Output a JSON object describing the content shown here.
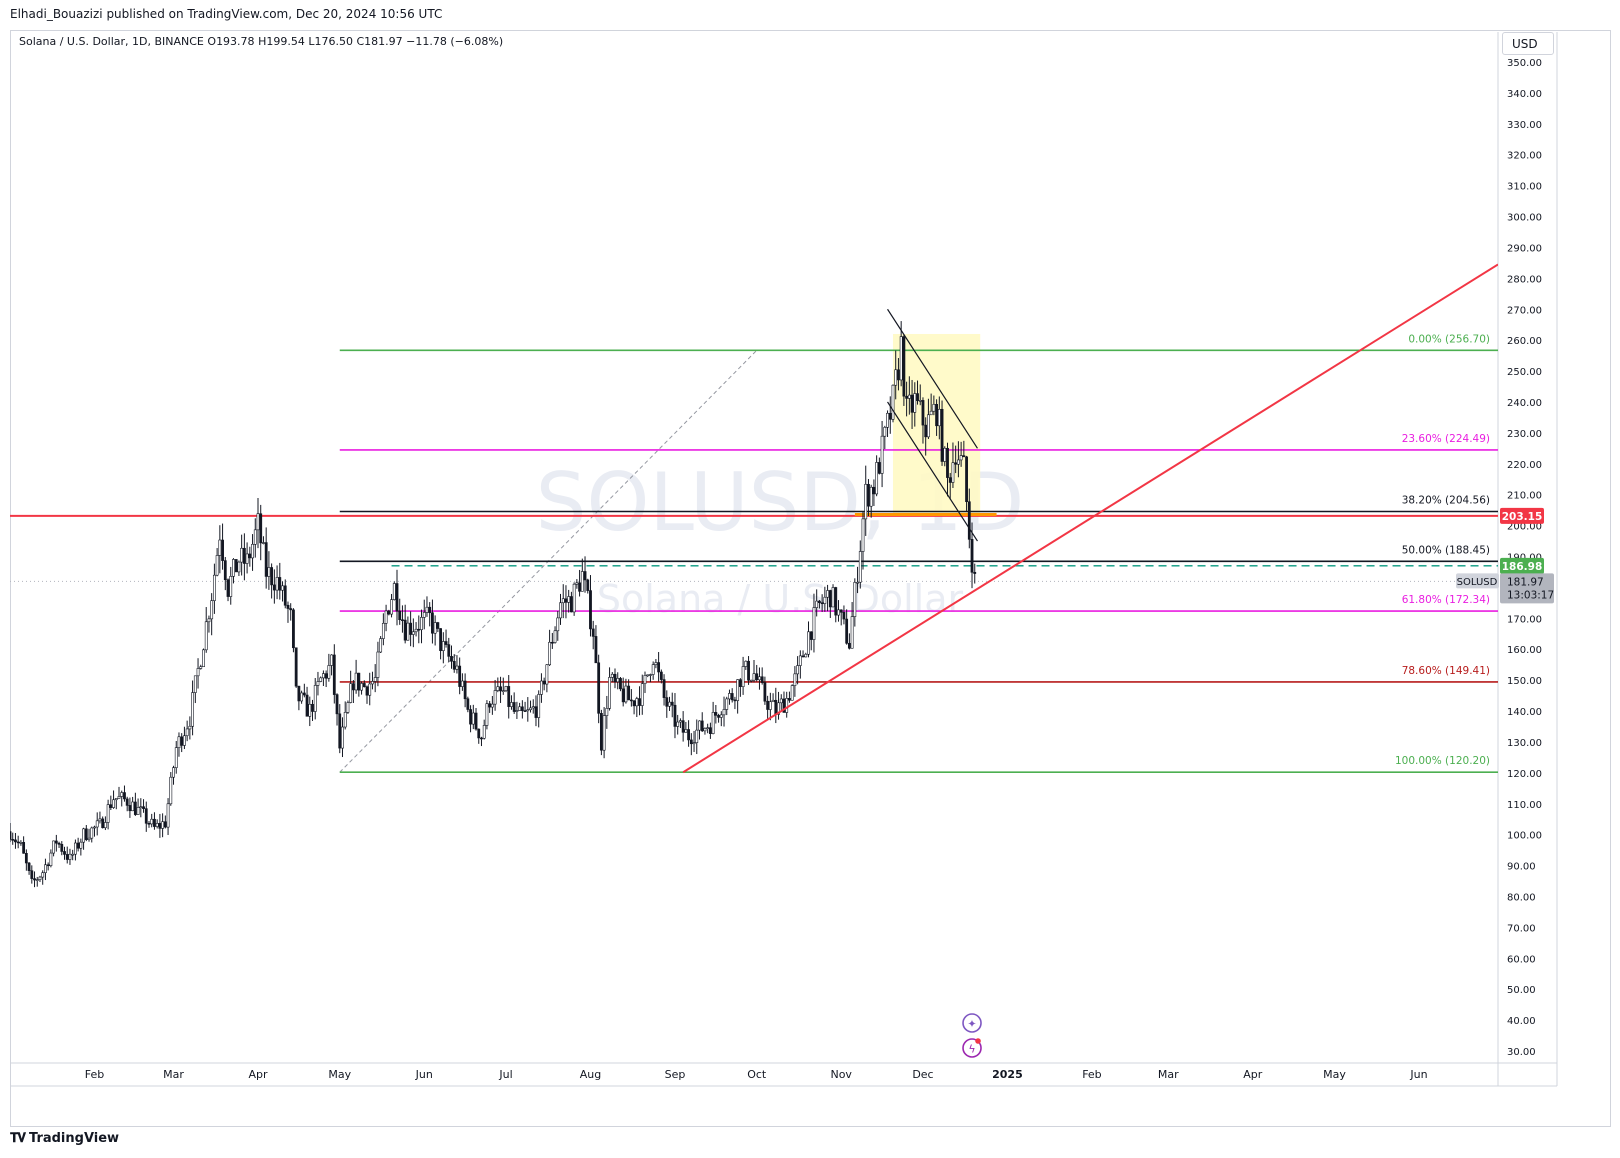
{
  "header": {
    "published_by": "Elhadi_Bouazizi published on TradingView.com, Dec 20, 2024 10:56 UTC"
  },
  "symbol_info": {
    "name": "Solana / U.S. Dollar, 1D, BINANCE",
    "o_label": "O",
    "o_value": "193.78",
    "h_label": "H",
    "h_value": "199.54",
    "l_label": "L",
    "l_value": "176.50",
    "c_label": "C",
    "c_value": "181.97",
    "change": "−11.78 (−6.08%)"
  },
  "currency": "USD",
  "watermark": {
    "symbol": "SOLUSD, 1D",
    "description": "Solana / U.S. Dollar"
  },
  "footer": {
    "brand": "TradingView"
  },
  "chart_data": {
    "type": "candlestick",
    "title": "Solana / U.S. Dollar, 1D, BINANCE",
    "ylim": [
      25,
      357
    ],
    "y_ticks": [
      30,
      40,
      50,
      60,
      70,
      80,
      90,
      100,
      110,
      120,
      130,
      140,
      150,
      160,
      170,
      180,
      190,
      200,
      210,
      220,
      230,
      240,
      250,
      260,
      270,
      280,
      290,
      300,
      310,
      320,
      330,
      340,
      350
    ],
    "xlim": [
      "2024-01-01",
      "2025-06-30"
    ],
    "x_ticks": [
      {
        "date": "2024-02-01",
        "label": "Feb"
      },
      {
        "date": "2024-03-01",
        "label": "Mar"
      },
      {
        "date": "2024-04-01",
        "label": "Apr"
      },
      {
        "date": "2024-05-01",
        "label": "May"
      },
      {
        "date": "2024-06-01",
        "label": "Jun"
      },
      {
        "date": "2024-07-01",
        "label": "Jul"
      },
      {
        "date": "2024-08-01",
        "label": "Aug"
      },
      {
        "date": "2024-09-01",
        "label": "Sep"
      },
      {
        "date": "2024-10-01",
        "label": "Oct"
      },
      {
        "date": "2024-11-01",
        "label": "Nov"
      },
      {
        "date": "2024-12-01",
        "label": "Dec"
      },
      {
        "date": "2025-01-01",
        "label": "2025",
        "bold": true
      },
      {
        "date": "2025-02-01",
        "label": "Feb"
      },
      {
        "date": "2025-03-01",
        "label": "Mar"
      },
      {
        "date": "2025-04-01",
        "label": "Apr"
      },
      {
        "date": "2025-05-01",
        "label": "May"
      },
      {
        "date": "2025-06-01",
        "label": "Jun"
      }
    ],
    "price_path": [
      [
        "2024-01-01",
        101
      ],
      [
        "2024-01-05",
        96
      ],
      [
        "2024-01-09",
        84
      ],
      [
        "2024-01-13",
        88
      ],
      [
        "2024-01-18",
        98
      ],
      [
        "2024-01-23",
        92
      ],
      [
        "2024-01-28",
        100
      ],
      [
        "2024-02-03",
        103
      ],
      [
        "2024-02-08",
        112
      ],
      [
        "2024-02-13",
        111
      ],
      [
        "2024-02-18",
        107
      ],
      [
        "2024-02-23",
        102
      ],
      [
        "2024-02-27",
        104
      ],
      [
        "2024-03-02",
        128
      ],
      [
        "2024-03-07",
        138
      ],
      [
        "2024-03-11",
        158
      ],
      [
        "2024-03-15",
        178
      ],
      [
        "2024-03-18",
        198
      ],
      [
        "2024-03-21",
        180
      ],
      [
        "2024-03-25",
        189
      ],
      [
        "2024-03-28",
        188
      ],
      [
        "2024-04-01",
        200
      ],
      [
        "2024-04-04",
        185
      ],
      [
        "2024-04-08",
        182
      ],
      [
        "2024-04-13",
        170
      ],
      [
        "2024-04-15",
        145
      ],
      [
        "2024-04-20",
        140
      ],
      [
        "2024-04-24",
        150
      ],
      [
        "2024-04-28",
        155
      ],
      [
        "2024-05-01",
        128
      ],
      [
        "2024-05-06",
        150
      ],
      [
        "2024-05-10",
        148
      ],
      [
        "2024-05-14",
        150
      ],
      [
        "2024-05-18",
        172
      ],
      [
        "2024-05-21",
        180
      ],
      [
        "2024-05-25",
        167
      ],
      [
        "2024-05-29",
        168
      ],
      [
        "2024-06-03",
        170
      ],
      [
        "2024-06-08",
        160
      ],
      [
        "2024-06-13",
        153
      ],
      [
        "2024-06-17",
        140
      ],
      [
        "2024-06-22",
        132
      ],
      [
        "2024-06-25",
        144
      ],
      [
        "2024-06-30",
        146
      ],
      [
        "2024-07-05",
        138
      ],
      [
        "2024-07-09",
        139
      ],
      [
        "2024-07-13",
        142
      ],
      [
        "2024-07-17",
        160
      ],
      [
        "2024-07-21",
        175
      ],
      [
        "2024-07-25",
        176
      ],
      [
        "2024-07-29",
        184
      ],
      [
        "2024-08-02",
        166
      ],
      [
        "2024-08-05",
        130
      ],
      [
        "2024-08-08",
        150
      ],
      [
        "2024-08-12",
        146
      ],
      [
        "2024-08-16",
        143
      ],
      [
        "2024-08-20",
        146
      ],
      [
        "2024-08-24",
        158
      ],
      [
        "2024-08-28",
        144
      ],
      [
        "2024-09-02",
        135
      ],
      [
        "2024-09-06",
        132
      ],
      [
        "2024-09-10",
        134
      ],
      [
        "2024-09-14",
        136
      ],
      [
        "2024-09-18",
        142
      ],
      [
        "2024-09-22",
        145
      ],
      [
        "2024-09-26",
        153
      ],
      [
        "2024-09-30",
        152
      ],
      [
        "2024-10-04",
        144
      ],
      [
        "2024-10-08",
        140
      ],
      [
        "2024-10-12",
        144
      ],
      [
        "2024-10-16",
        152
      ],
      [
        "2024-10-20",
        165
      ],
      [
        "2024-10-24",
        174
      ],
      [
        "2024-10-28",
        178
      ],
      [
        "2024-11-01",
        169
      ],
      [
        "2024-11-04",
        162
      ],
      [
        "2024-11-07",
        186
      ],
      [
        "2024-11-10",
        210
      ],
      [
        "2024-11-13",
        213
      ],
      [
        "2024-11-17",
        228
      ],
      [
        "2024-11-20",
        240
      ],
      [
        "2024-11-23",
        258
      ],
      [
        "2024-11-25",
        236
      ],
      [
        "2024-11-28",
        240
      ],
      [
        "2024-12-02",
        232
      ],
      [
        "2024-12-06",
        238
      ],
      [
        "2024-12-10",
        214
      ],
      [
        "2024-12-13",
        225
      ],
      [
        "2024-12-16",
        218
      ],
      [
        "2024-12-18",
        197
      ],
      [
        "2024-12-20",
        182
      ]
    ],
    "fibonacci": [
      {
        "ratio_label": "0.00%",
        "price": 256.7,
        "price_label": "256.70",
        "color": "#4caf50"
      },
      {
        "ratio_label": "23.60%",
        "price": 224.49,
        "price_label": "224.49",
        "color": "#e91ee0"
      },
      {
        "ratio_label": "38.20%",
        "price": 204.56,
        "price_label": "204.56",
        "color": "#131722"
      },
      {
        "ratio_label": "50.00%",
        "price": 188.45,
        "price_label": "188.45",
        "color": "#131722"
      },
      {
        "ratio_label": "61.80%",
        "price": 172.34,
        "price_label": "172.34",
        "color": "#e91ee0"
      },
      {
        "ratio_label": "78.60%",
        "price": 149.41,
        "price_label": "149.41",
        "color": "#b71c1c"
      },
      {
        "ratio_label": "100.00%",
        "price": 120.2,
        "price_label": "120.20",
        "color": "#4caf50"
      }
    ],
    "fib_start_date": "2024-05-01",
    "fib_diagonal": {
      "from": [
        "2024-05-01",
        120.2
      ],
      "to": [
        "2024-10-01",
        256.7
      ]
    },
    "horizontal_resistance": {
      "price": 203.15,
      "label": "203.15",
      "color": "#f23645"
    },
    "dashed_level": {
      "price": 186.98,
      "label": "186.98",
      "color": "#089981",
      "from_date": "2024-05-20"
    },
    "orange_level": {
      "price": 203.6,
      "from": "2024-11-06",
      "to": "2024-12-28",
      "color": "#ff9800"
    },
    "rising_trendline": {
      "from": [
        "2024-09-04",
        120.2
      ],
      "to": [
        "2025-06-30",
        284.5
      ],
      "color": "#f23645"
    },
    "falling_channel": {
      "upper": {
        "from": [
          "2024-11-18",
          270
        ],
        "to": [
          "2024-12-21",
          225
        ]
      },
      "lower": {
        "from": [
          "2024-11-18",
          240
        ],
        "to": [
          "2024-12-21",
          195
        ]
      },
      "highlight": {
        "from": "2024-11-20",
        "to": "2024-12-22",
        "top": 262,
        "bottom": 203,
        "color": "#fff9c4"
      }
    },
    "last_price": {
      "symbol": "SOLUSD",
      "price": "181.97",
      "countdown": "13:03:17",
      "value": 181.97
    }
  }
}
